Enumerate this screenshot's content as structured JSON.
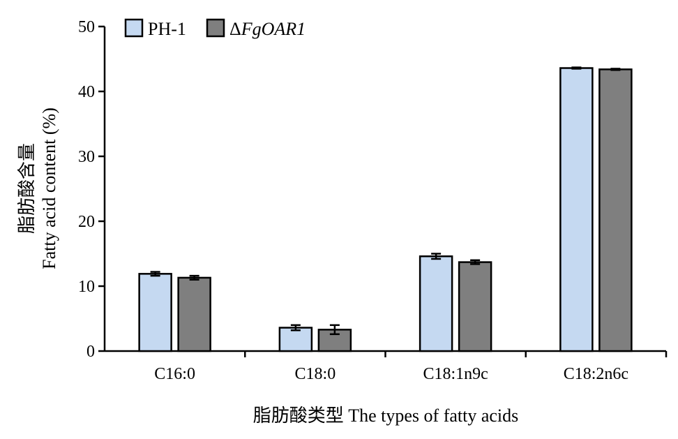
{
  "chart_data": {
    "type": "bar",
    "title": "",
    "xlabel": "脂肪酸类型 The types of fatty acids",
    "ylabel": [
      "脂肪酸含量",
      "Fatty acid content (%)"
    ],
    "categories": [
      "C16:0",
      "C18:0",
      "C18:1n9c",
      "C18:2n6c"
    ],
    "series": [
      {
        "name": "PH-1",
        "values": [
          11.9,
          3.6,
          14.6,
          43.6
        ],
        "errors": [
          0.3,
          0.4,
          0.4,
          0.1
        ],
        "color": "#c5d9f1"
      },
      {
        "name": "ΔFgOAR1",
        "name_prefix": "Δ",
        "name_italic": "FgOAR1",
        "values": [
          11.3,
          3.3,
          13.7,
          43.4
        ],
        "errors": [
          0.3,
          0.7,
          0.3,
          0.1
        ],
        "color": "#7f7f7f"
      }
    ],
    "ylim": [
      0,
      50
    ],
    "yticks": [
      0,
      10,
      20,
      30,
      40,
      50
    ],
    "grid": false,
    "legend_position": "top-left"
  }
}
